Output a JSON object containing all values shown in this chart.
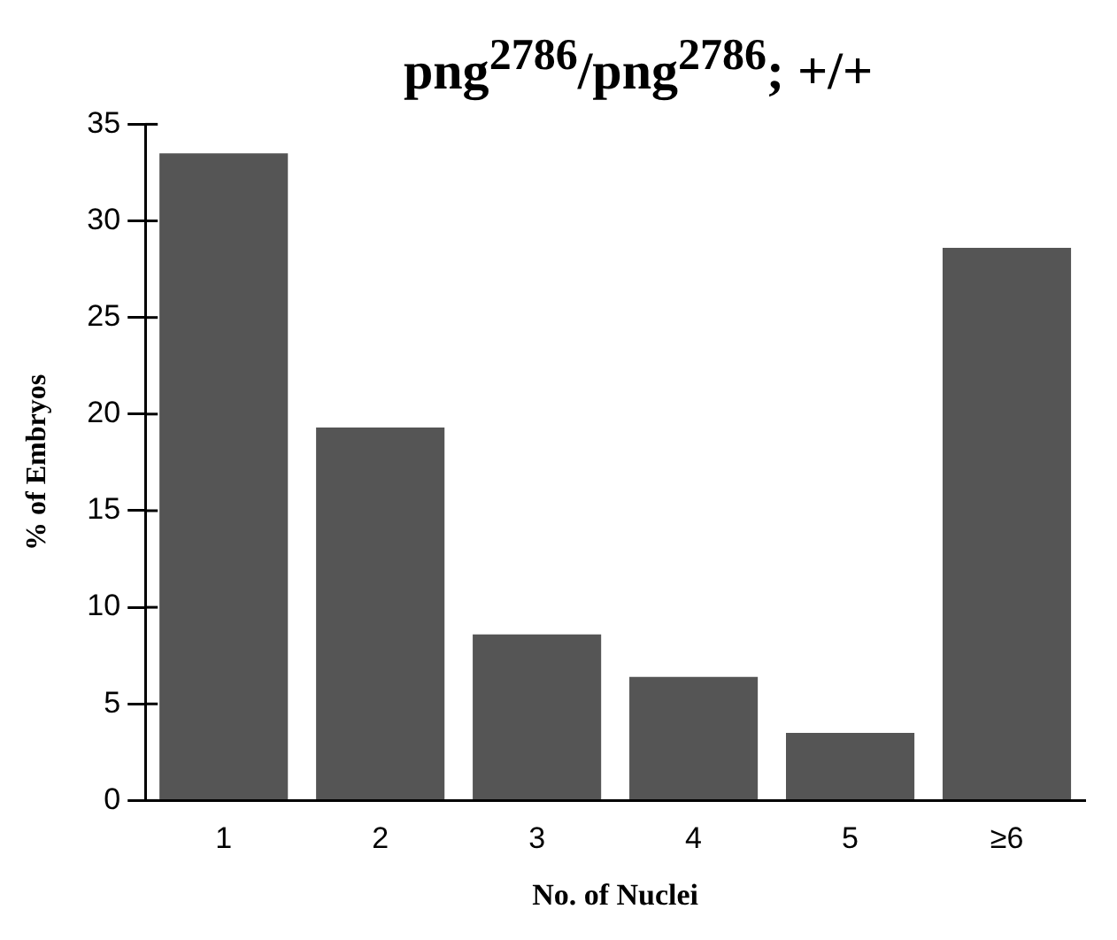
{
  "chart_data": {
    "type": "bar",
    "title": "png$^{2786}$/png$^{2786}$; +/+",
    "xlabel": "No. of Nuclei",
    "ylabel": "% of Embryos",
    "categories": [
      "1",
      "2",
      "3",
      "4",
      "5",
      "≥6"
    ],
    "values": [
      33.5,
      19.3,
      8.6,
      6.4,
      3.5,
      28.6
    ],
    "color": "#555555",
    "ylim": [
      0,
      35
    ],
    "yticks": [
      0,
      5,
      10,
      15,
      20,
      25,
      30,
      35
    ],
    "grid": false,
    "legend": false
  }
}
